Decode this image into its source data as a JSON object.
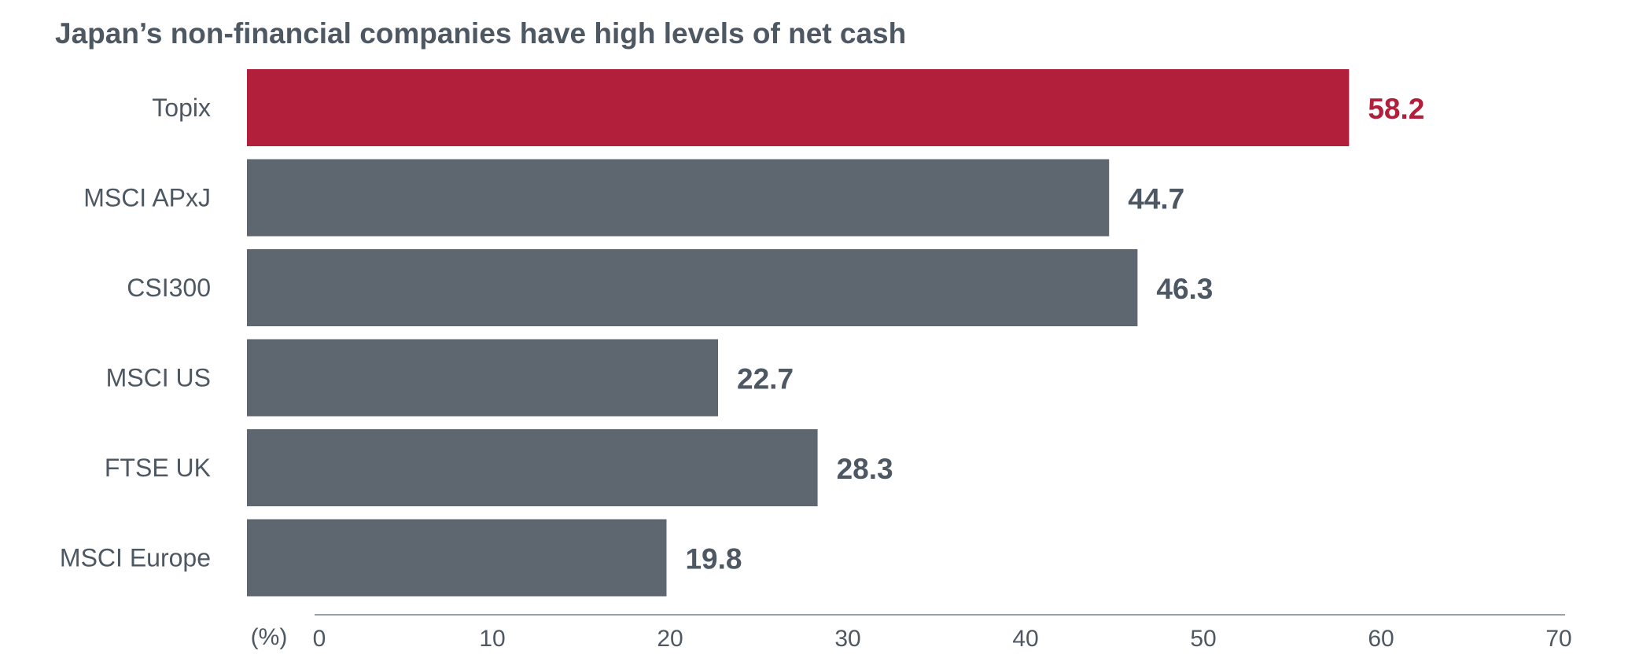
{
  "chart_data": {
    "type": "bar",
    "orientation": "horizontal",
    "title": "Japan’s non-financial companies have high levels of net cash",
    "categories": [
      "Topix",
      "MSCI APxJ",
      "CSI300",
      "MSCI US",
      "FTSE UK",
      "MSCI Europe"
    ],
    "values": [
      58.2,
      44.7,
      46.3,
      22.7,
      28.3,
      19.8
    ],
    "value_labels": [
      "58.2",
      "44.7",
      "46.3",
      "22.7",
      "28.3",
      "19.8"
    ],
    "highlight_category": "Topix",
    "xlabel": "(%)",
    "ylabel": "",
    "xlim": [
      0,
      70
    ],
    "x_ticks": [
      "0",
      "10",
      "20",
      "30",
      "40",
      "50",
      "60",
      "70"
    ],
    "grid": false,
    "legend": "none",
    "colors": {
      "highlight": "#b11f3b",
      "bar": "#5e6770",
      "text": "#4d5863",
      "axis": "#9aa1a8"
    }
  }
}
